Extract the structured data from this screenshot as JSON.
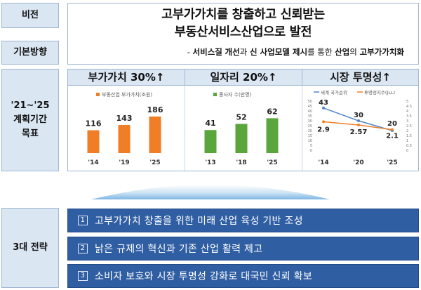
{
  "vision": {
    "label": "비전",
    "title_line1": "고부가가치를 창출하고 신뢰받는",
    "title_line2": "부동산서비스산업으로 발전"
  },
  "basic_direction": {
    "label": "기본방향",
    "dash": "- ",
    "parts": [
      "서비스질",
      " ",
      "개선",
      "과 ",
      "신 사업모델 제시",
      "를 통한 ",
      "산업",
      "의 ",
      "고부가가치화"
    ]
  },
  "plan_goal": {
    "label_line1": "'21~'25",
    "label_line2": "계획기간",
    "label_line3": "목표"
  },
  "goals": [
    {
      "heading": "부가가치 30%↑"
    },
    {
      "heading": "일자리 20%↑"
    },
    {
      "heading": "시장 투명성↑"
    }
  ],
  "strategy": {
    "label": "3대 전략",
    "items": [
      {
        "num": "1",
        "text": "고부가가치 창출을 위한 미래 산업 육성 기반 조성"
      },
      {
        "num": "2",
        "text": "낡은 규제의 혁신과 기존 산업 활력 제고"
      },
      {
        "num": "3",
        "text": "소비자 보호와 시장 투명성 강화로 대국민 신뢰 확보"
      }
    ]
  },
  "colors": {
    "bar_orange": "#f07e26",
    "bar_green": "#5aa63c",
    "line_blue": "#4f86c6",
    "line_orange": "#f07e26",
    "strategy_bg": "#2f5ea3",
    "label_bg": "#dbe6f3"
  },
  "chart_data": [
    {
      "type": "bar",
      "legend": [
        "부동산업 부가가치(조원)"
      ],
      "categories": [
        "'14",
        "'19",
        "'25"
      ],
      "series": [
        {
          "name": "부동산업 부가가치(조원)",
          "values": [
            116,
            143,
            186
          ]
        }
      ],
      "ylim": [
        0,
        200
      ]
    },
    {
      "type": "bar",
      "legend": [
        "종사자 수(만명)"
      ],
      "categories": [
        "'13",
        "'18",
        "'25"
      ],
      "series": [
        {
          "name": "종사자 수(만명)",
          "values": [
            41,
            52,
            62
          ]
        }
      ],
      "ylim": [
        0,
        70
      ]
    },
    {
      "type": "line",
      "legend": [
        "세계 국가순위",
        "투명성지수(JLL)"
      ],
      "categories": [
        "'14",
        "'20",
        "'25"
      ],
      "series": [
        {
          "name": "세계 국가순위",
          "values": [
            43,
            30,
            20
          ]
        },
        {
          "name": "투명성지수(JLL)",
          "values": [
            2.9,
            2.57,
            2.1
          ]
        }
      ],
      "left_axis_ticks": [
        "0",
        "5",
        "10",
        "15",
        "20",
        "25",
        "30",
        "35",
        "40",
        "45",
        "50"
      ],
      "right_axis_ticks": [
        "0",
        "0.5",
        "1",
        "1.5",
        "2",
        "2.5",
        "3",
        "3.5",
        "4",
        "4.5",
        "5"
      ],
      "ylim_left": [
        0,
        50
      ],
      "ylim_right": [
        0,
        5
      ]
    }
  ]
}
